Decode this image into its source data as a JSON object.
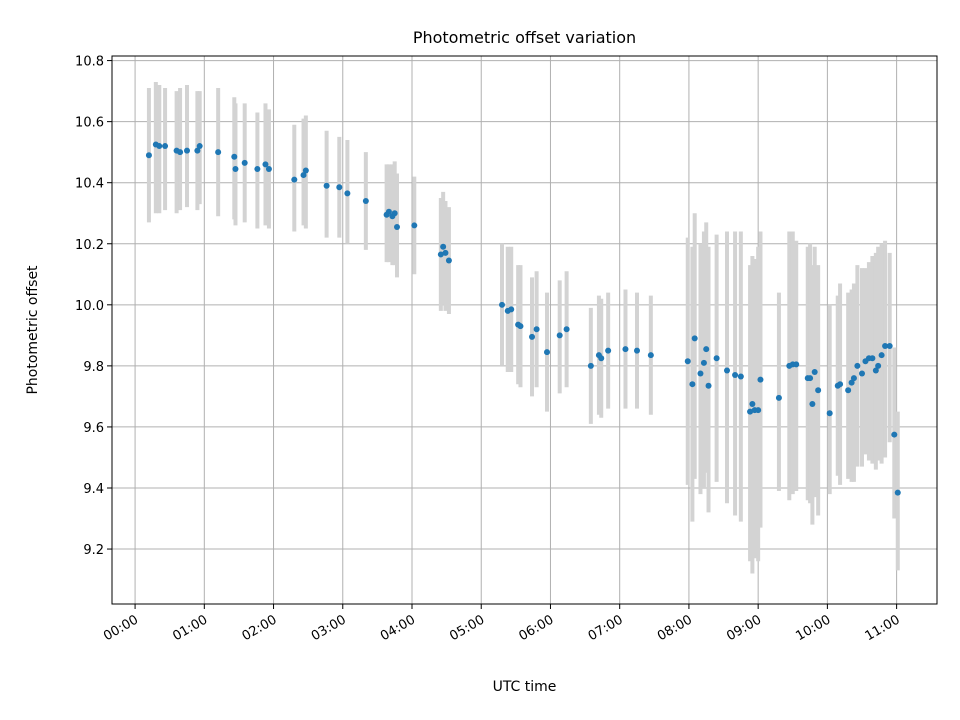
{
  "chart_data": {
    "type": "scatter",
    "title": "Photometric offset variation",
    "xlabel": "UTC time",
    "ylabel": "Photometric offset",
    "x_unit": "UTC hours",
    "xlim": [
      "-00:20",
      "11:35"
    ],
    "ylim": [
      9.02,
      10.815
    ],
    "x_ticks": [
      "00:00",
      "01:00",
      "02:00",
      "03:00",
      "04:00",
      "05:00",
      "06:00",
      "07:00",
      "08:00",
      "09:00",
      "10:00",
      "11:00"
    ],
    "y_ticks": [
      "9.2",
      "9.4",
      "9.6",
      "9.8",
      "10.0",
      "10.2",
      "10.4",
      "10.6",
      "10.8"
    ],
    "grid": true,
    "marker_color": "#1f77b4",
    "errorbar_color": "#d3d3d3",
    "series": [
      {
        "errorbars": true,
        "points": [
          [
            "00:12",
            10.49,
            10.27,
            10.71
          ],
          [
            "00:18",
            10.525,
            10.3,
            10.73
          ],
          [
            "00:21",
            10.52,
            10.3,
            10.72
          ],
          [
            "00:26",
            10.52,
            10.31,
            10.71
          ],
          [
            "00:36",
            10.505,
            10.3,
            10.7
          ],
          [
            "00:39",
            10.5,
            10.31,
            10.71
          ],
          [
            "00:45",
            10.505,
            10.32,
            10.72
          ],
          [
            "00:54",
            10.505,
            10.31,
            10.7
          ],
          [
            "00:56",
            10.52,
            10.33,
            10.7
          ],
          [
            "01:12",
            10.5,
            10.29,
            10.71
          ],
          [
            "01:26",
            10.485,
            10.28,
            10.68
          ],
          [
            "01:27",
            10.445,
            10.26,
            10.66
          ],
          [
            "01:35",
            10.465,
            10.27,
            10.66
          ],
          [
            "01:46",
            10.445,
            10.25,
            10.63
          ],
          [
            "01:53",
            10.46,
            10.26,
            10.66
          ],
          [
            "01:56",
            10.445,
            10.25,
            10.64
          ],
          [
            "02:18",
            10.41,
            10.24,
            10.59
          ],
          [
            "02:26",
            10.425,
            10.26,
            10.61
          ],
          [
            "02:28",
            10.44,
            10.25,
            10.62
          ],
          [
            "02:46",
            10.39,
            10.22,
            10.57
          ],
          [
            "02:57",
            10.385,
            10.22,
            10.55
          ],
          [
            "03:04",
            10.365,
            10.2,
            10.54
          ],
          [
            "03:20",
            10.34,
            10.18,
            10.5
          ],
          [
            "03:38",
            10.295,
            10.14,
            10.46
          ],
          [
            "03:40",
            10.305,
            10.14,
            10.46
          ],
          [
            "03:43",
            10.29,
            10.13,
            10.46
          ],
          [
            "03:45",
            10.3,
            10.13,
            10.47
          ],
          [
            "03:47",
            10.255,
            10.09,
            10.43
          ],
          [
            "04:02",
            10.26,
            10.1,
            10.42
          ],
          [
            "04:25",
            10.165,
            9.98,
            10.35
          ],
          [
            "04:27",
            10.19,
            10.0,
            10.37
          ],
          [
            "04:29",
            10.17,
            9.98,
            10.34
          ],
          [
            "04:32",
            10.145,
            9.97,
            10.32
          ],
          [
            "05:18",
            10.0,
            9.8,
            10.2
          ],
          [
            "05:23",
            9.98,
            9.78,
            10.19
          ],
          [
            "05:26",
            9.985,
            9.78,
            10.19
          ],
          [
            "05:32",
            9.935,
            9.74,
            10.13
          ],
          [
            "05:34",
            9.93,
            9.73,
            10.13
          ],
          [
            "05:44",
            9.895,
            9.7,
            10.09
          ],
          [
            "05:48",
            9.92,
            9.73,
            10.11
          ],
          [
            "05:57",
            9.845,
            9.65,
            10.04
          ],
          [
            "06:08",
            9.9,
            9.71,
            10.08
          ],
          [
            "06:14",
            9.92,
            9.73,
            10.11
          ],
          [
            "06:35",
            9.8,
            9.61,
            9.99
          ],
          [
            "06:42",
            9.835,
            9.64,
            10.03
          ],
          [
            "06:44",
            9.825,
            9.63,
            10.02
          ],
          [
            "06:50",
            9.85,
            9.66,
            10.04
          ],
          [
            "07:05",
            9.855,
            9.66,
            10.05
          ],
          [
            "07:15",
            9.85,
            9.66,
            10.04
          ],
          [
            "07:27",
            9.835,
            9.64,
            10.03
          ],
          [
            "07:59",
            9.815,
            9.41,
            10.22
          ],
          [
            "08:03",
            9.74,
            9.29,
            10.19
          ],
          [
            "08:05",
            9.89,
            9.43,
            10.3
          ],
          [
            "08:10",
            9.775,
            9.38,
            10.2
          ],
          [
            "08:13",
            9.81,
            9.4,
            10.24
          ],
          [
            "08:15",
            9.855,
            9.45,
            10.27
          ],
          [
            "08:17",
            9.735,
            9.32,
            10.19
          ],
          [
            "08:24",
            9.825,
            9.42,
            10.23
          ],
          [
            "08:33",
            9.785,
            9.35,
            10.24
          ],
          [
            "08:40",
            9.77,
            9.31,
            10.24
          ],
          [
            "08:45",
            9.765,
            9.29,
            10.24
          ],
          [
            "08:53",
            9.65,
            9.16,
            10.13
          ],
          [
            "08:55",
            9.675,
            9.12,
            10.16
          ],
          [
            "08:57",
            9.655,
            9.17,
            10.15
          ],
          [
            "09:00",
            9.655,
            9.16,
            10.19
          ],
          [
            "09:02",
            9.755,
            9.27,
            10.24
          ],
          [
            "09:18",
            9.695,
            9.39,
            10.04
          ],
          [
            "09:27",
            9.8,
            9.36,
            10.24
          ],
          [
            "09:30",
            9.805,
            9.38,
            10.24
          ],
          [
            "09:33",
            9.805,
            9.39,
            10.21
          ],
          [
            "09:43",
            9.76,
            9.36,
            10.19
          ],
          [
            "09:45",
            9.76,
            9.35,
            10.2
          ],
          [
            "09:47",
            9.675,
            9.28,
            10.13
          ],
          [
            "09:49",
            9.78,
            9.37,
            10.19
          ],
          [
            "09:52",
            9.72,
            9.31,
            10.13
          ],
          [
            "10:02",
            9.645,
            9.38,
            10.0
          ],
          [
            "10:09",
            9.735,
            9.44,
            10.03
          ],
          [
            "10:11",
            9.74,
            9.41,
            10.07
          ],
          [
            "10:18",
            9.72,
            9.43,
            10.04
          ],
          [
            "10:21",
            9.745,
            9.42,
            10.05
          ],
          [
            "10:23",
            9.76,
            9.42,
            10.07
          ],
          [
            "10:26",
            9.8,
            9.47,
            10.13
          ],
          [
            "10:30",
            9.775,
            9.47,
            10.12
          ],
          [
            "10:33",
            9.815,
            9.51,
            10.12
          ],
          [
            "10:36",
            9.825,
            9.49,
            10.14
          ],
          [
            "10:39",
            9.825,
            9.48,
            10.16
          ],
          [
            "10:42",
            9.785,
            9.46,
            10.17
          ],
          [
            "10:44",
            9.8,
            9.49,
            10.19
          ],
          [
            "10:47",
            9.835,
            9.48,
            10.2
          ],
          [
            "10:50",
            9.865,
            9.5,
            10.21
          ],
          [
            "10:54",
            9.865,
            9.55,
            10.17
          ],
          [
            "10:58",
            9.575,
            9.3,
            9.86
          ],
          [
            "11:01",
            9.385,
            9.13,
            9.65
          ]
        ]
      }
    ]
  }
}
